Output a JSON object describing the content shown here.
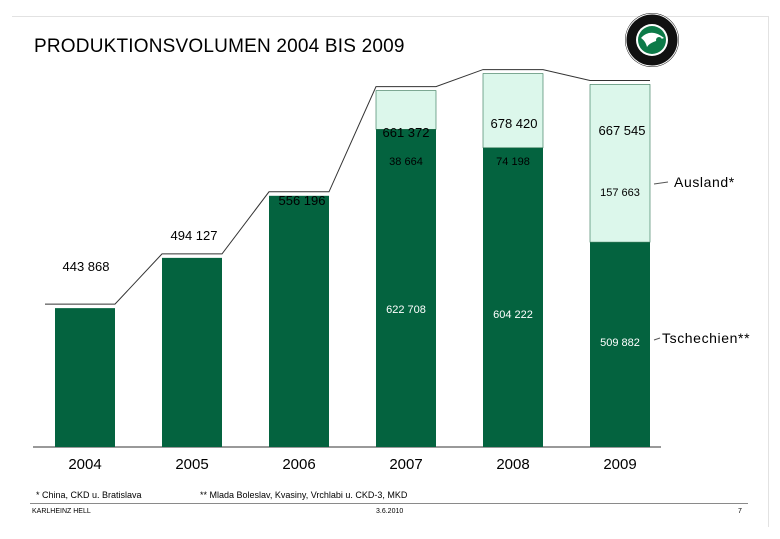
{
  "page": {
    "title": "PRODUKTIONSVOLUMEN 2004 BIS 2009",
    "logo_text": "ŠKODA AUTO",
    "footnote_ausland": "* China, CKD u. Bratislava",
    "footnote_tschechien": "** Mlada Boleslav, Kvasiny, Vrchlabi u. CKD-3, MKD",
    "footer_left": "KARLHEINZ HELL",
    "footer_center": "3.6.2010",
    "footer_right": "7"
  },
  "colors": {
    "domestic": "#04633f",
    "abroad": "#dcf7eb",
    "logo_green": "#0d7a48"
  },
  "chart_data": {
    "type": "bar",
    "stacked": true,
    "categories": [
      "2004",
      "2005",
      "2006",
      "2007",
      "2008",
      "2009"
    ],
    "series": [
      {
        "name": "Tschechien**",
        "values": [
          443868,
          494127,
          556196,
          622708,
          604222,
          509882
        ],
        "labels": [
          "",
          "",
          "",
          "622 708",
          "604 222",
          "509 882"
        ]
      },
      {
        "name": "Ausland*",
        "values": [
          0,
          0,
          0,
          38664,
          74198,
          157663
        ],
        "labels": [
          "",
          "",
          "",
          "38 664",
          "74 198",
          "157 663"
        ]
      }
    ],
    "totals": [
      443868,
      494127,
      556196,
      661372,
      678420,
      667545
    ],
    "total_labels": [
      "443 868",
      "494 127",
      "556 196",
      "661 372",
      "678 420",
      "667 545"
    ],
    "ylim": [
      0,
      680000
    ],
    "legend": [
      "Ausland*",
      "Tschechien**"
    ],
    "legend_position": "right",
    "title": "",
    "xlabel": "",
    "ylabel": ""
  }
}
